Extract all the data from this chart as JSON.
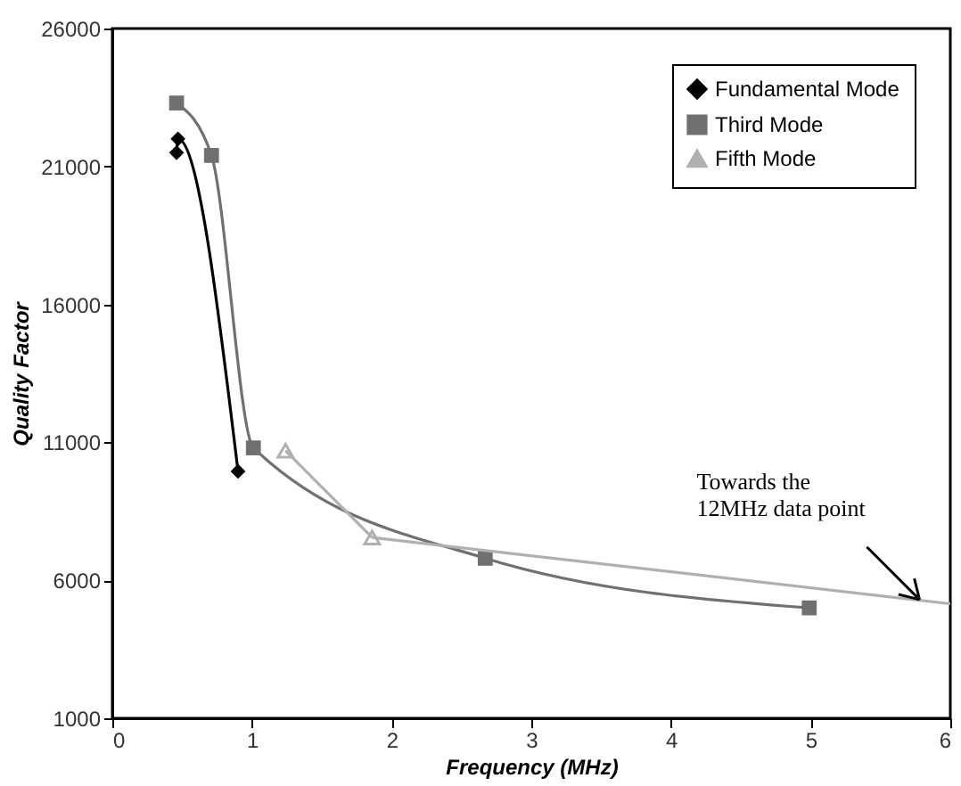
{
  "chart_data": {
    "type": "line",
    "xlabel": "Frequency (MHz)",
    "ylabel": "Quality Factor",
    "xlim": [
      0,
      6
    ],
    "xticks": [
      0,
      1,
      2,
      3,
      4,
      5,
      6
    ],
    "ylim": [
      1000,
      26000
    ],
    "yticks": [
      1000,
      6000,
      11000,
      16000,
      21000,
      26000
    ],
    "grid": false,
    "legend": "top right",
    "series": [
      {
        "name": "Fundamental Mode",
        "color": "#000000",
        "marker": "diamond",
        "x": [
          0.46,
          0.47,
          0.9
        ],
        "values": [
          21500,
          22000,
          9950
        ]
      },
      {
        "name": "Third Mode",
        "color": "#707070",
        "marker": "square",
        "x": [
          0.46,
          0.71,
          1.01,
          2.67,
          4.99
        ],
        "values": [
          23300,
          21400,
          10800,
          6800,
          5000
        ]
      },
      {
        "name": "Fifth Mode",
        "color": "#b0b0b0",
        "marker": "triangle",
        "x": [
          1.24,
          1.86
        ],
        "values": [
          10700,
          7550
        ]
      },
      {
        "type": "line",
        "color": "#b0b0b0",
        "marker": "none",
        "x": [
          1.86,
          6
        ],
        "values": [
          7550,
          5150
        ]
      }
    ],
    "annotations": [
      {
        "text": "Towards the\n12MHz data point",
        "x": 5.78,
        "y": 5300
      }
    ]
  }
}
